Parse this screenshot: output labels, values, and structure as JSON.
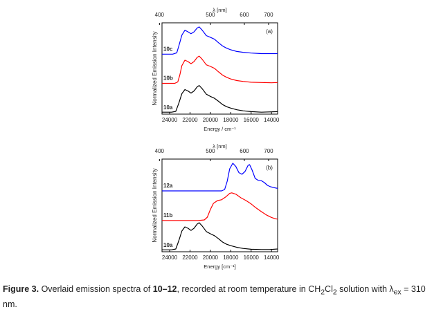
{
  "chart_data": [
    {
      "type": "line",
      "panel_label": "(a)",
      "xlabel": "Energy / cm⁻¹",
      "top_xlabel": "λ [nm]",
      "ylabel": "Normalized Emission Intensity",
      "xlim": [
        24750,
        13400
      ],
      "x_ticks": [
        24000,
        22000,
        20000,
        18000,
        16000,
        14000
      ],
      "top_ticks": [
        400,
        500,
        600,
        700
      ],
      "ylim": [
        0,
        3.25
      ],
      "series": [
        {
          "name": "10a",
          "color": "#000000",
          "offset": 0.0,
          "points": [
            [
              24750,
              0.02
            ],
            [
              23800,
              0.02
            ],
            [
              23400,
              0.05
            ],
            [
              23100,
              0.35
            ],
            [
              22800,
              0.7
            ],
            [
              22500,
              0.85
            ],
            [
              22200,
              0.8
            ],
            [
              21900,
              0.72
            ],
            [
              21600,
              0.8
            ],
            [
              21300,
              0.95
            ],
            [
              21100,
              1.0
            ],
            [
              20800,
              0.88
            ],
            [
              20400,
              0.68
            ],
            [
              20000,
              0.6
            ],
            [
              19600,
              0.53
            ],
            [
              19200,
              0.42
            ],
            [
              18800,
              0.3
            ],
            [
              18400,
              0.22
            ],
            [
              18000,
              0.17
            ],
            [
              17400,
              0.11
            ],
            [
              16800,
              0.07
            ],
            [
              16000,
              0.04
            ],
            [
              15000,
              0.02
            ],
            [
              14200,
              0.03
            ],
            [
              13400,
              0.04
            ]
          ]
        },
        {
          "name": "10b",
          "color": "#ff0000",
          "offset": 1.08,
          "points": [
            [
              24750,
              0.0
            ],
            [
              23500,
              0.0
            ],
            [
              23200,
              0.05
            ],
            [
              23000,
              0.3
            ],
            [
              22800,
              0.65
            ],
            [
              22500,
              0.85
            ],
            [
              22200,
              0.8
            ],
            [
              21900,
              0.72
            ],
            [
              21600,
              0.8
            ],
            [
              21300,
              0.95
            ],
            [
              21100,
              1.0
            ],
            [
              20800,
              0.88
            ],
            [
              20400,
              0.68
            ],
            [
              20000,
              0.62
            ],
            [
              19600,
              0.55
            ],
            [
              19200,
              0.42
            ],
            [
              18800,
              0.3
            ],
            [
              18400,
              0.22
            ],
            [
              18000,
              0.16
            ],
            [
              17400,
              0.1
            ],
            [
              16800,
              0.07
            ],
            [
              16000,
              0.04
            ],
            [
              15000,
              0.03
            ],
            [
              14000,
              0.02
            ],
            [
              13400,
              0.03
            ]
          ]
        },
        {
          "name": "10c",
          "color": "#0000ff",
          "offset": 2.15,
          "points": [
            [
              24750,
              0.0
            ],
            [
              23700,
              0.0
            ],
            [
              23300,
              0.05
            ],
            [
              23100,
              0.3
            ],
            [
              22800,
              0.7
            ],
            [
              22500,
              0.88
            ],
            [
              22200,
              0.82
            ],
            [
              21900,
              0.75
            ],
            [
              21600,
              0.82
            ],
            [
              21300,
              0.96
            ],
            [
              21100,
              1.0
            ],
            [
              20800,
              0.88
            ],
            [
              20400,
              0.68
            ],
            [
              20000,
              0.62
            ],
            [
              19600,
              0.55
            ],
            [
              19200,
              0.42
            ],
            [
              18800,
              0.3
            ],
            [
              18400,
              0.22
            ],
            [
              18000,
              0.16
            ],
            [
              17400,
              0.1
            ],
            [
              16800,
              0.07
            ],
            [
              16000,
              0.04
            ],
            [
              15000,
              0.02
            ],
            [
              14000,
              0.02
            ],
            [
              13400,
              0.02
            ]
          ]
        }
      ]
    },
    {
      "type": "line",
      "panel_label": "(b)",
      "xlabel": "Energy  [cm⁻¹]",
      "top_xlabel": "λ [nm]",
      "ylabel": "Normalized Emission Intensity",
      "xlim": [
        24750,
        13400
      ],
      "x_ticks": [
        24000,
        22000,
        20000,
        18000,
        16000,
        14000
      ],
      "top_ticks": [
        400,
        500,
        600,
        700
      ],
      "ylim": [
        0,
        3.25
      ],
      "series": [
        {
          "name": "10a",
          "color": "#000000",
          "offset": 0.0,
          "points": [
            [
              24750,
              0.02
            ],
            [
              23800,
              0.02
            ],
            [
              23400,
              0.05
            ],
            [
              23100,
              0.35
            ],
            [
              22800,
              0.7
            ],
            [
              22500,
              0.85
            ],
            [
              22200,
              0.8
            ],
            [
              21900,
              0.72
            ],
            [
              21600,
              0.8
            ],
            [
              21300,
              0.95
            ],
            [
              21100,
              1.0
            ],
            [
              20800,
              0.88
            ],
            [
              20400,
              0.68
            ],
            [
              20000,
              0.6
            ],
            [
              19600,
              0.53
            ],
            [
              19200,
              0.42
            ],
            [
              18800,
              0.3
            ],
            [
              18400,
              0.22
            ],
            [
              18000,
              0.17
            ],
            [
              17400,
              0.11
            ],
            [
              16800,
              0.07
            ],
            [
              16000,
              0.04
            ],
            [
              15000,
              0.03
            ],
            [
              14200,
              0.03
            ],
            [
              13400,
              0.05
            ]
          ]
        },
        {
          "name": "11b",
          "color": "#ff0000",
          "offset": 1.08,
          "points": [
            [
              24750,
              0.0
            ],
            [
              21200,
              0.0
            ],
            [
              20600,
              0.02
            ],
            [
              20300,
              0.12
            ],
            [
              20000,
              0.4
            ],
            [
              19700,
              0.62
            ],
            [
              19300,
              0.72
            ],
            [
              18900,
              0.75
            ],
            [
              18500,
              0.85
            ],
            [
              18100,
              0.98
            ],
            [
              17900,
              1.0
            ],
            [
              17500,
              0.95
            ],
            [
              17000,
              0.82
            ],
            [
              16500,
              0.72
            ],
            [
              16000,
              0.6
            ],
            [
              15500,
              0.45
            ],
            [
              15000,
              0.32
            ],
            [
              14500,
              0.2
            ],
            [
              14000,
              0.11
            ],
            [
              13600,
              0.06
            ],
            [
              13400,
              0.05
            ]
          ]
        },
        {
          "name": "12a",
          "color": "#0000ff",
          "offset": 2.15,
          "points": [
            [
              24750,
              0.0
            ],
            [
              18900,
              0.0
            ],
            [
              18600,
              0.05
            ],
            [
              18350,
              0.35
            ],
            [
              18100,
              0.8
            ],
            [
              17800,
              1.0
            ],
            [
              17500,
              0.88
            ],
            [
              17200,
              0.66
            ],
            [
              16900,
              0.6
            ],
            [
              16600,
              0.7
            ],
            [
              16300,
              0.92
            ],
            [
              16150,
              0.95
            ],
            [
              15900,
              0.75
            ],
            [
              15600,
              0.45
            ],
            [
              15300,
              0.38
            ],
            [
              15000,
              0.37
            ],
            [
              14700,
              0.3
            ],
            [
              14400,
              0.2
            ],
            [
              14100,
              0.15
            ],
            [
              13800,
              0.12
            ],
            [
              13400,
              0.09
            ]
          ]
        }
      ]
    }
  ],
  "caption": {
    "label": "Figure 3.",
    "text_1": " Overlaid emission spectra of ",
    "compounds": "10–12",
    "text_2": ", recorded at room temperature in CH",
    "sub_1": "2",
    "text_3": "Cl",
    "sub_2": "2",
    "text_4": " solution with λ",
    "sub_3": "ex",
    "text_5": " = 310 nm."
  }
}
